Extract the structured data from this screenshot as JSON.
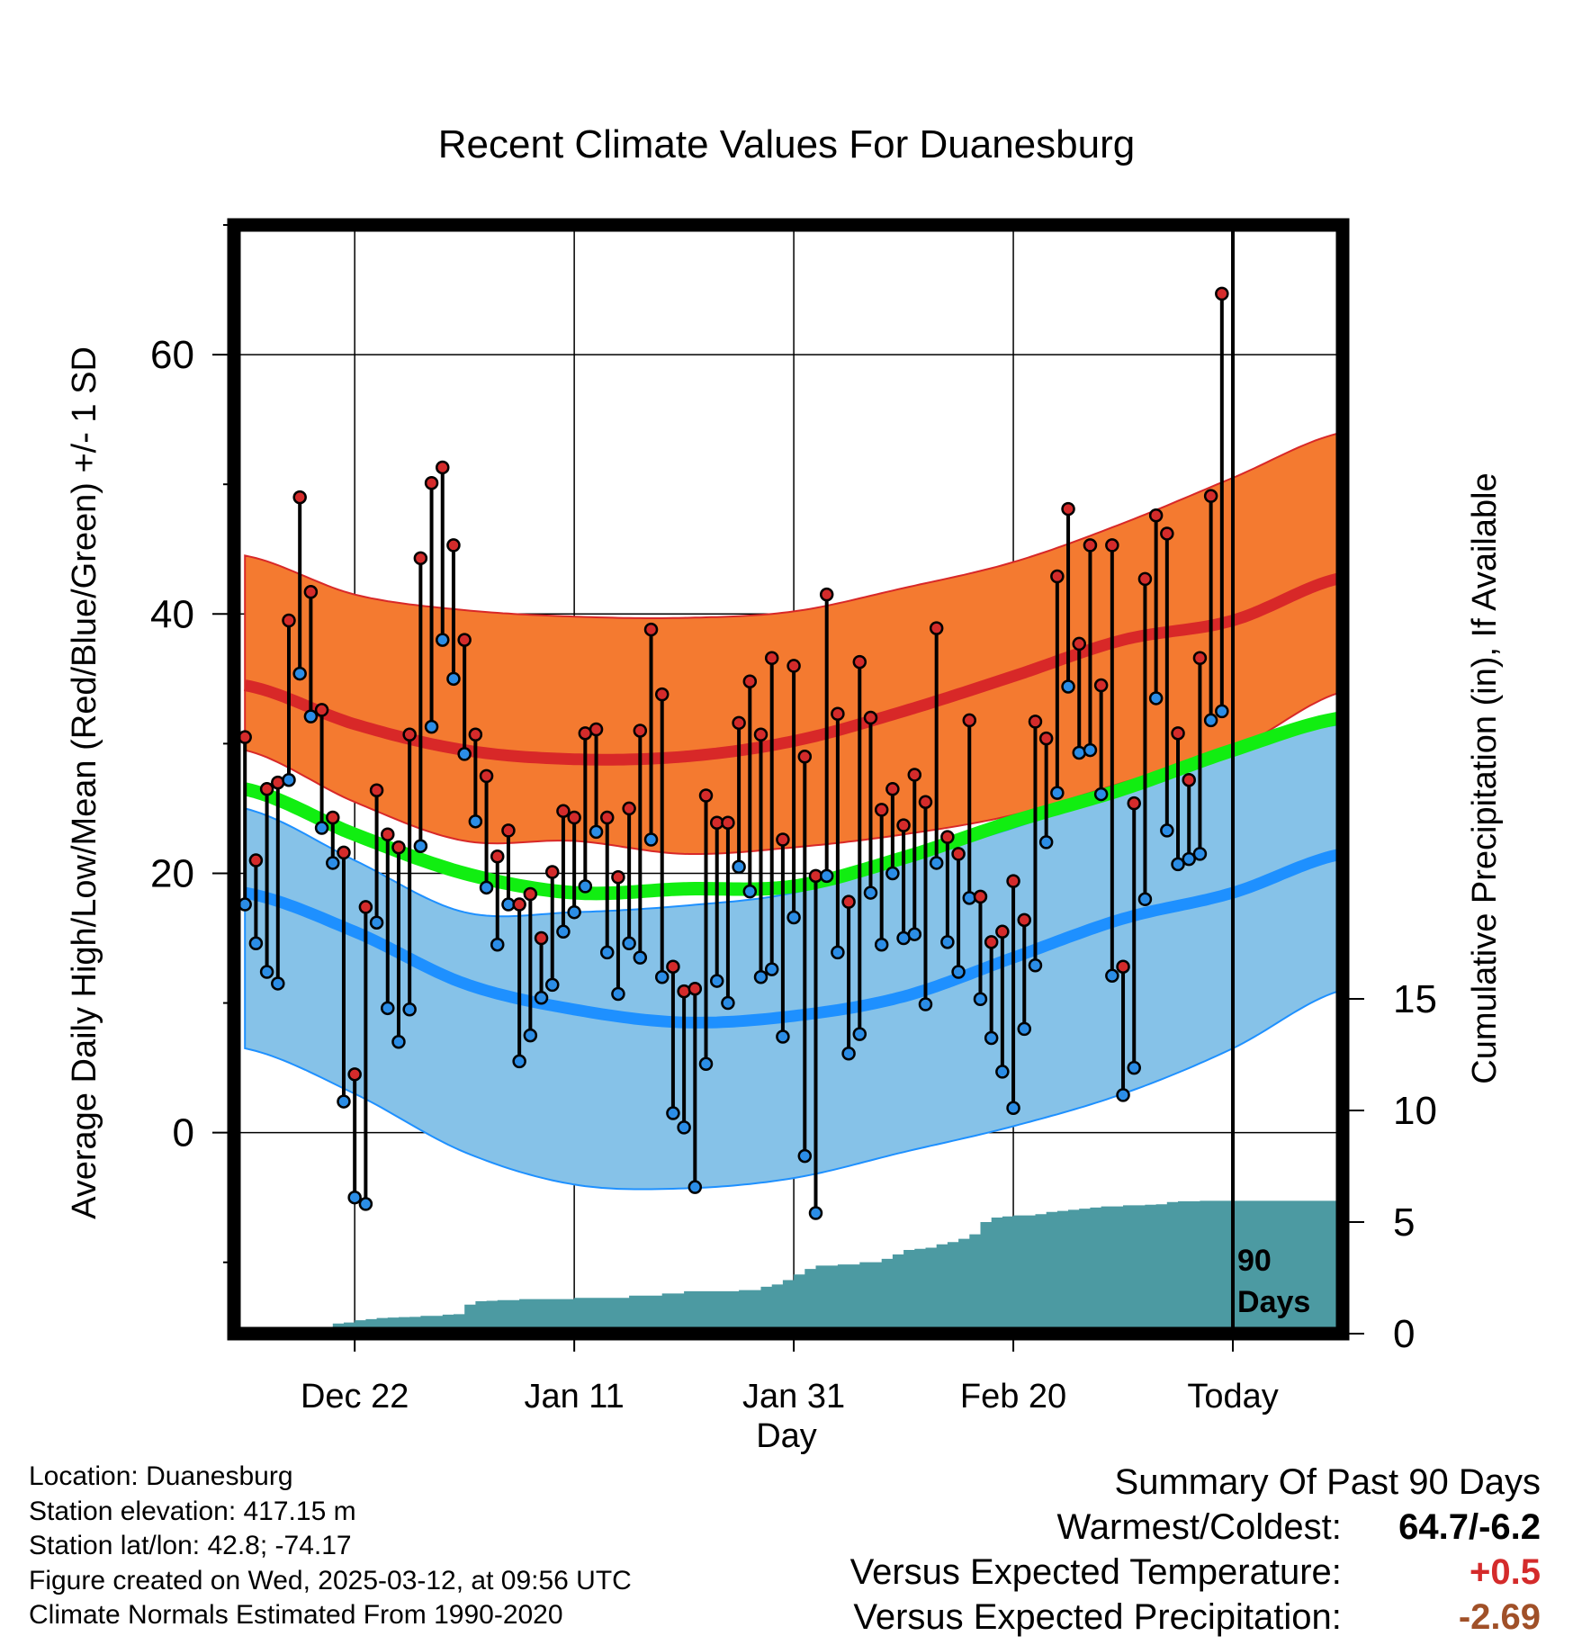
{
  "chart_data": {
    "type": "line",
    "title": "Recent Climate Values For Duanesburg",
    "xlabel": "Day",
    "ylabel_left": "Average Daily High/Low/Mean (Red/Blue/Green) +/- 1 SD",
    "ylabel_right": "Cumulative Precipitation (in), If Available",
    "x_ticks": [
      {
        "day": 10,
        "label": "Dec 22"
      },
      {
        "day": 30,
        "label": "Jan 11"
      },
      {
        "day": 50,
        "label": "Jan 31"
      },
      {
        "day": 70,
        "label": "Feb 20"
      },
      {
        "day": 90,
        "label": "Today"
      }
    ],
    "xlim": [
      -1,
      100
    ],
    "ylim_left": [
      -15.5,
      70
    ],
    "y_ticks_left": [
      0,
      20,
      40,
      60
    ],
    "ylim_right": [
      0,
      15
    ],
    "y_ticks_right": [
      0,
      5,
      10,
      15
    ],
    "today_marker_label": [
      "90",
      "Days"
    ],
    "normals": {
      "days": [
        0,
        10,
        20,
        30,
        40,
        50,
        60,
        70,
        80,
        90,
        100
      ],
      "high_mean": [
        34.5,
        31.5,
        29.5,
        28.8,
        29.0,
        30.2,
        32.5,
        35.2,
        38.0,
        39.5,
        42.8
      ],
      "high_upper": [
        44.5,
        41.5,
        40.3,
        39.8,
        39.7,
        40.2,
        42.0,
        44.0,
        47.0,
        50.5,
        54.0
      ],
      "high_lower": [
        29.5,
        25.5,
        22.5,
        22.5,
        21.5,
        22.0,
        23.0,
        24.5,
        27.0,
        29.5,
        34.0
      ],
      "mean_mean": [
        26.5,
        23.0,
        20.0,
        18.5,
        18.8,
        19.0,
        21.2,
        24.0,
        26.5,
        29.5,
        32.0
      ],
      "low_mean": [
        18.5,
        15.5,
        11.5,
        9.5,
        8.5,
        9.0,
        10.5,
        13.5,
        16.5,
        18.5,
        21.5
      ],
      "low_upper": [
        25.0,
        21.0,
        17.0,
        17.0,
        17.5,
        18.5,
        21.0,
        23.5,
        26.5,
        29.5,
        31.5
      ],
      "low_lower": [
        6.5,
        3.0,
        -1.5,
        -4.0,
        -4.3,
        -3.5,
        -1.5,
        0.5,
        3.0,
        6.5,
        11.0
      ]
    },
    "daily_high": [
      30.5,
      21.0,
      26.5,
      27.0,
      39.5,
      49.0,
      41.7,
      32.6,
      24.3,
      21.6,
      4.5,
      17.4,
      26.4,
      23.0,
      22.0,
      30.7,
      44.3,
      50.1,
      51.3,
      45.3,
      38.0,
      30.7,
      27.5,
      21.3,
      23.3,
      17.6,
      18.4,
      15.0,
      20.1,
      24.8,
      24.3,
      30.8,
      31.1,
      24.3,
      19.7,
      25.0,
      31.0,
      38.8,
      33.8,
      12.8,
      10.9,
      11.1,
      26.0,
      23.9,
      23.9,
      31.6,
      34.8,
      30.7,
      36.6,
      22.6,
      36.0,
      29.0,
      19.8,
      41.5,
      32.3,
      17.8,
      36.3,
      32.0,
      24.9,
      26.5,
      23.7,
      27.6,
      25.5,
      38.9,
      22.8,
      21.5,
      31.8,
      18.2,
      14.7,
      15.5,
      19.4,
      16.4,
      31.7,
      30.4,
      42.9,
      48.1,
      37.7,
      45.3,
      34.5,
      45.3,
      12.8,
      25.4,
      42.7,
      47.6,
      46.2,
      30.8,
      27.2,
      36.6,
      49.1,
      64.7
    ],
    "daily_low": [
      17.6,
      14.6,
      12.4,
      11.5,
      27.2,
      35.4,
      32.1,
      23.5,
      20.8,
      2.4,
      -5.0,
      -5.5,
      16.2,
      9.6,
      7.0,
      9.5,
      22.1,
      31.3,
      38.0,
      35.0,
      29.2,
      24.0,
      18.9,
      14.5,
      17.6,
      5.5,
      7.5,
      10.4,
      11.4,
      15.5,
      17.0,
      19.0,
      23.2,
      13.9,
      10.7,
      14.6,
      13.5,
      22.6,
      12.0,
      1.5,
      0.4,
      -4.2,
      5.3,
      11.7,
      10.0,
      20.5,
      18.6,
      12.0,
      12.6,
      7.4,
      16.6,
      -1.8,
      -6.2,
      19.8,
      13.9,
      6.1,
      7.6,
      18.5,
      14.5,
      20.0,
      15.0,
      15.3,
      9.9,
      20.8,
      14.7,
      12.4,
      18.1,
      10.3,
      7.3,
      4.7,
      1.9,
      8.0,
      12.9,
      22.4,
      26.2,
      34.4,
      29.3,
      29.5,
      26.1,
      12.1,
      2.9,
      5.0,
      18.0,
      33.5,
      23.3,
      20.7,
      21.1,
      21.5,
      31.8,
      32.5
    ],
    "cumulative_precip": {
      "days": [
        0,
        5,
        6,
        7,
        8,
        9,
        10,
        11,
        12,
        13,
        14,
        15,
        16,
        18,
        19,
        20,
        21,
        22,
        23,
        25,
        30,
        35,
        38,
        40,
        45,
        47,
        48,
        49,
        50,
        51,
        52,
        54,
        56,
        58,
        59,
        60,
        61,
        62,
        63,
        64,
        65,
        66,
        67,
        68,
        69,
        70,
        72,
        73,
        74,
        75,
        76,
        77,
        78,
        80,
        82,
        83,
        84,
        85,
        87,
        90,
        100
      ],
      "values": [
        0,
        0,
        0.1,
        0.2,
        0.45,
        0.5,
        0.6,
        0.65,
        0.7,
        0.72,
        0.74,
        0.75,
        0.8,
        0.85,
        0.87,
        1.3,
        1.45,
        1.47,
        1.5,
        1.55,
        1.6,
        1.7,
        1.8,
        1.9,
        1.95,
        2.1,
        2.2,
        2.4,
        2.65,
        2.9,
        3.05,
        3.1,
        3.2,
        3.35,
        3.55,
        3.75,
        3.8,
        3.85,
        4.0,
        4.1,
        4.25,
        4.45,
        5.0,
        5.2,
        5.25,
        5.3,
        5.35,
        5.45,
        5.5,
        5.55,
        5.6,
        5.65,
        5.7,
        5.75,
        5.78,
        5.8,
        5.9,
        5.93,
        5.95,
        5.95,
        5.95
      ]
    }
  },
  "footer": {
    "location": "Location: Duanesburg",
    "elevation": "Station elevation: 417.15 m",
    "latlon": "Station lat/lon: 42.8; -74.17",
    "created": "Figure created on Wed, 2025-03-12, at 09:56 UTC",
    "normals": "Climate Normals Estimated From 1990-2020"
  },
  "summary": {
    "title": "Summary Of Past 90 Days",
    "warmest_coldest_label": "Warmest/Coldest:",
    "warmest_coldest_value": "64.7/-6.2",
    "temp_label": "Versus Expected Temperature:",
    "temp_value": "+0.5",
    "precip_label": "Versus Expected Precipitation:",
    "precip_value": "-2.69"
  },
  "colors": {
    "high_band": "#f47a30",
    "high_line": "#d82828",
    "low_band": "#86c2e8",
    "low_line": "#1e90ff",
    "overlap_band": "#9c1414",
    "mean_line": "#11ee11",
    "precip_fill": "#4c9aa2",
    "high_dot": "#d42b2b",
    "low_dot": "#2b8de6",
    "temp_delta": "#d42b2b",
    "precip_delta": "#a05028"
  }
}
